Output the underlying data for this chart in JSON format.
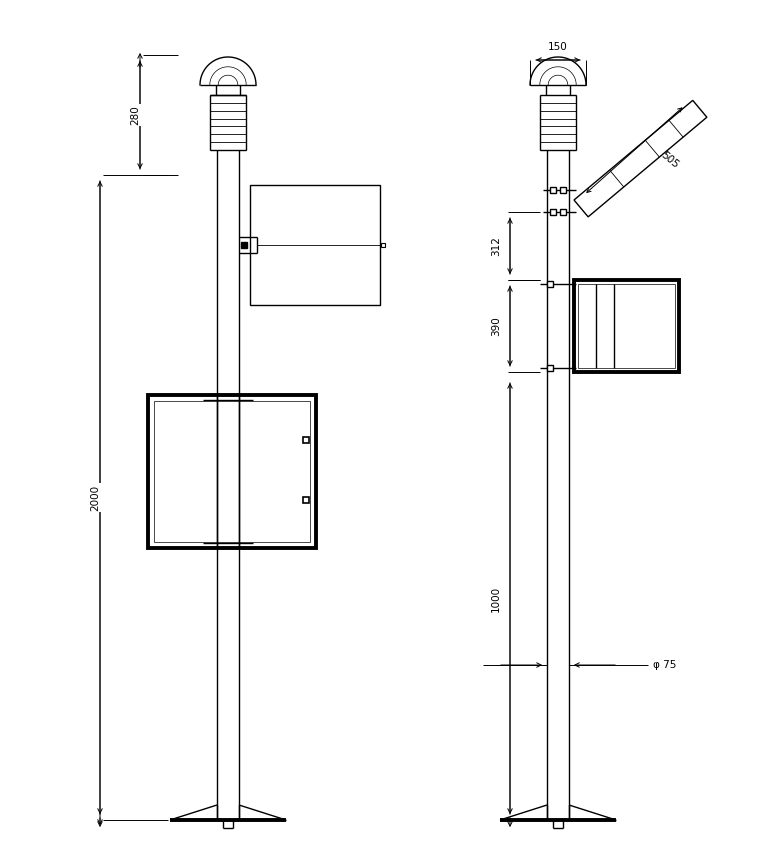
{
  "bg_color": "#ffffff",
  "line_color": "#000000",
  "lw": 1.0,
  "lw_thick": 2.8,
  "lw_dim": 0.7,
  "fs": 7.5,
  "fig_w": 7.78,
  "fig_h": 8.64,
  "dim_280": "280",
  "dim_2000": "2000",
  "dim_150": "150",
  "dim_505": "505",
  "dim_312": "312",
  "dim_390": "390",
  "dim_1000": "1000",
  "dim_phi": "φ 75"
}
